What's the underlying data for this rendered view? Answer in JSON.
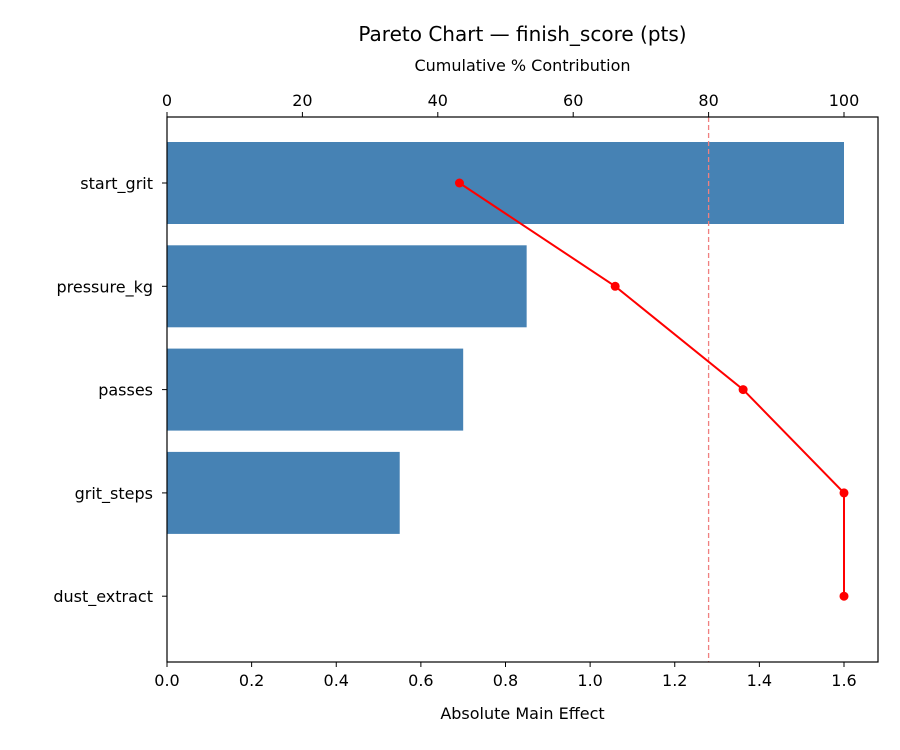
{
  "chart_data": {
    "type": "bar",
    "orientation": "horizontal",
    "title": "Pareto Chart — finish_score (pts)",
    "xlabel": "Absolute Main Effect",
    "x2label": "Cumulative % Contribution",
    "ylabel": "",
    "categories": [
      "start_grit",
      "pressure_kg",
      "passes",
      "grit_steps",
      "dust_extract"
    ],
    "series": [
      {
        "name": "Absolute Main Effect",
        "type": "bar",
        "axis": "bottom",
        "color": "#4682b4",
        "values": [
          1.6,
          0.85,
          0.7,
          0.55,
          0.0
        ]
      },
      {
        "name": "Cumulative % Contribution",
        "type": "line",
        "axis": "top",
        "color": "#ff0000",
        "marker": "circle",
        "values": [
          43.2,
          66.2,
          85.1,
          100.0,
          100.0
        ]
      }
    ],
    "xlim": [
      0,
      1.68
    ],
    "x_ticks": [
      "0.0",
      "0.2",
      "0.4",
      "0.6",
      "0.8",
      "1.0",
      "1.2",
      "1.4",
      "1.6"
    ],
    "x2lim": [
      0,
      105
    ],
    "x2_ticks": [
      "0",
      "20",
      "40",
      "60",
      "80",
      "100"
    ],
    "reference_line": {
      "axis": "top",
      "value": 80,
      "style": "dashed",
      "color": "#f08080"
    },
    "grid": false,
    "legend": null
  }
}
